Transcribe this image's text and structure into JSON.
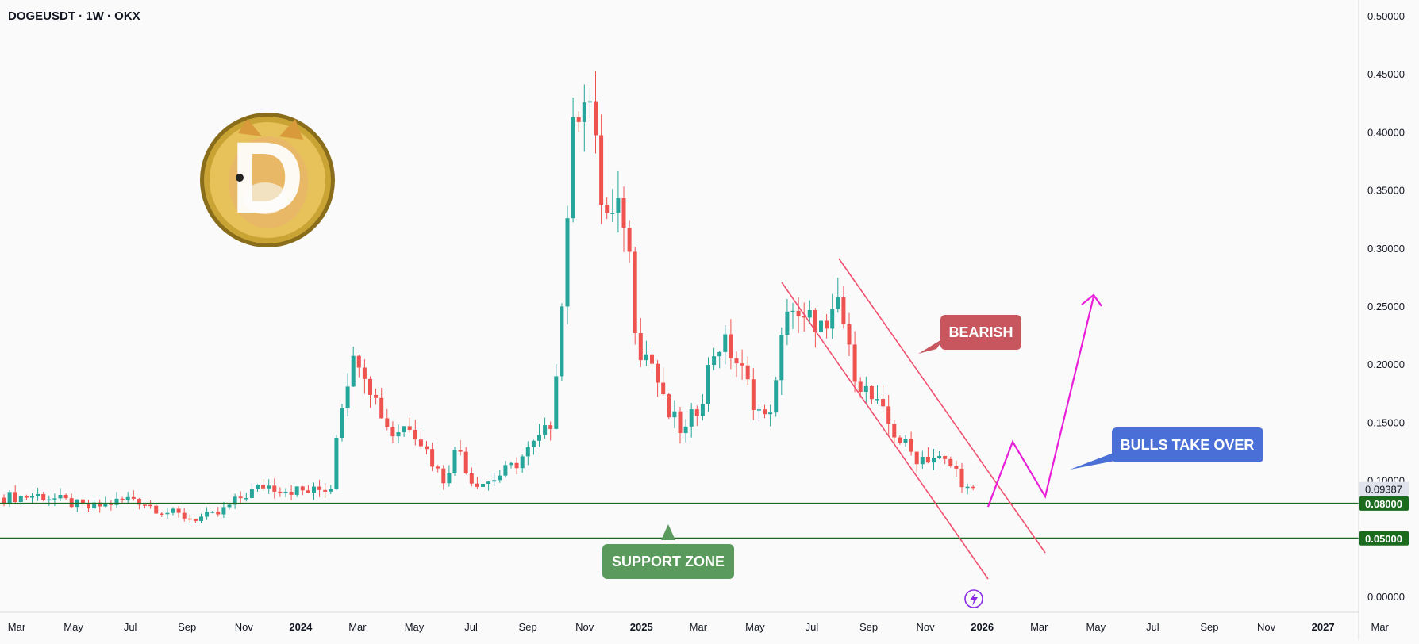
{
  "header": {
    "title": "DOGEUSDT · 1W · OKX"
  },
  "colors": {
    "up": "#26a69a",
    "down": "#ef5350",
    "support": "#1b6b1f",
    "channel": "#f0506e",
    "path": "#e91ed8",
    "price_tag": "#e0e3eb"
  },
  "logo": {
    "icon": "doge-coin-icon",
    "glyph": "D"
  },
  "y_axis": {
    "ticks": [
      "0.50000",
      "0.45000",
      "0.40000",
      "0.35000",
      "0.30000",
      "0.25000",
      "0.20000",
      "0.15000",
      "0.10000",
      "0.00000"
    ],
    "current_price": "0.09387",
    "support_labels": [
      "0.08000",
      "0.05000"
    ]
  },
  "x_axis": {
    "labels": [
      "Mar",
      "May",
      "Jul",
      "Sep",
      "Nov",
      "2024",
      "Mar",
      "May",
      "Jul",
      "Sep",
      "Nov",
      "2025",
      "Mar",
      "May",
      "Jul",
      "Sep",
      "Nov",
      "2026",
      "Mar",
      "May",
      "Jul",
      "Sep",
      "Nov",
      "2027",
      "Mar"
    ]
  },
  "annotations": {
    "bearish": "BEARISH",
    "bulls": "BULLS TAKE OVER",
    "support": "SUPPORT ZONE",
    "lightning_icon": "lightning-icon"
  },
  "chart_data": {
    "type": "candlestick",
    "symbol": "DOGEUSDT",
    "interval": "1W",
    "exchange": "OKX",
    "ylim": [
      0,
      0.5
    ],
    "support_levels": [
      0.08,
      0.05
    ],
    "last_price": 0.09387,
    "grid": false
  }
}
